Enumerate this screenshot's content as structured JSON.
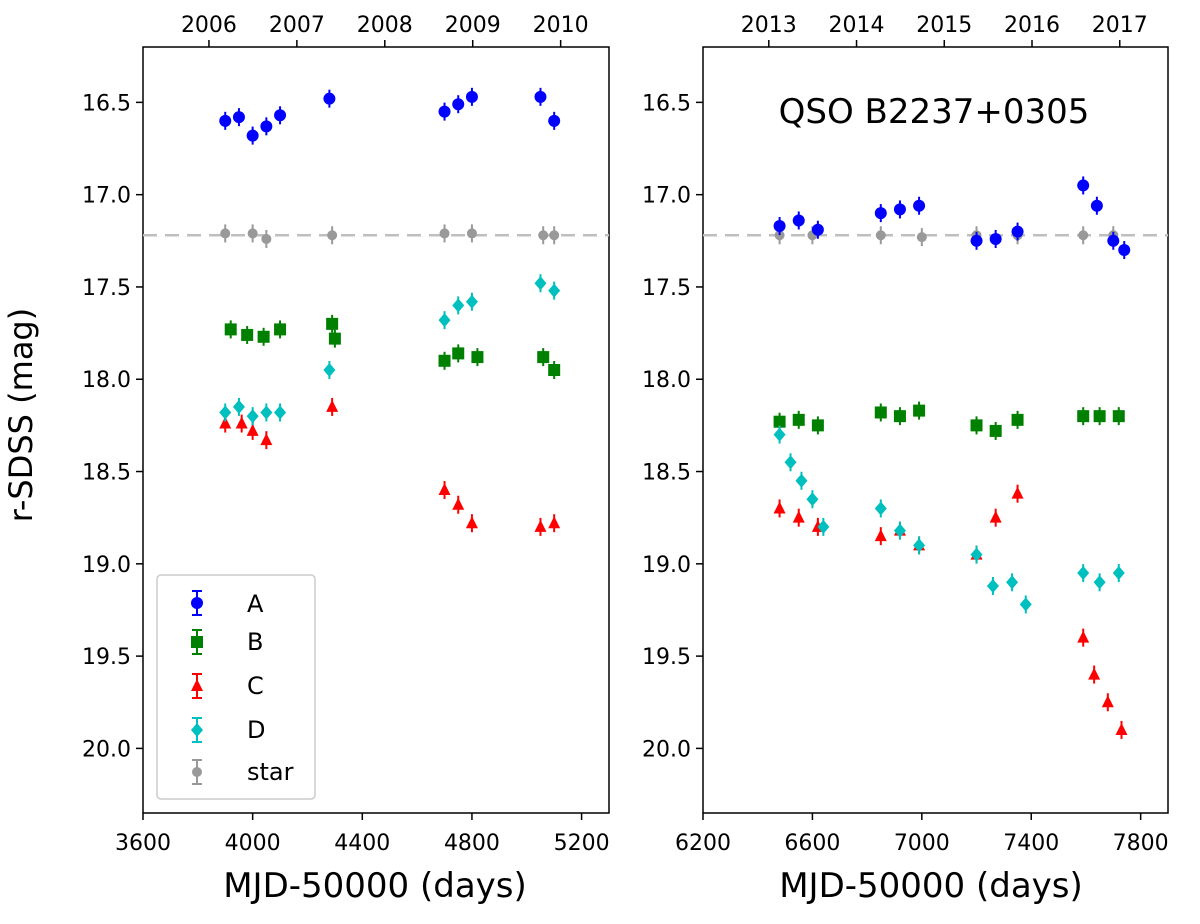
{
  "chart_data": {
    "type": "scatter",
    "title": "QSO B2237+0305",
    "ylabel": "r-SDSS (mag)",
    "y_inverted": true,
    "ylim": [
      16.2,
      20.35
    ],
    "yticks": [
      "16.5",
      "17.0",
      "17.5",
      "18.0",
      "18.5",
      "19.0",
      "19.5",
      "20.0"
    ],
    "reference_line": {
      "y": 17.22,
      "style": "dashed",
      "color": "#bfbfbf"
    },
    "legend": {
      "placement": "lower-left",
      "entries": [
        "A",
        "B",
        "C",
        "D",
        "star"
      ]
    },
    "colors": {
      "A": "#0000ff",
      "B": "#008000",
      "C": "#ff0000",
      "D": "#00bfbf",
      "star": "#999999"
    },
    "panels": [
      {
        "xlabel": "MJD-50000 (days)",
        "xlim": [
          3600,
          5300
        ],
        "xticks": [
          "3600",
          "4000",
          "4400",
          "4800",
          "5200"
        ],
        "top_axis_labels": [
          "2006",
          "2007",
          "2008",
          "2009",
          "2010"
        ],
        "series": [
          {
            "name": "A",
            "marker": "circle",
            "x": [
              3900,
              3950,
              4000,
              4050,
              4100,
              4280,
              4700,
              4750,
              4800,
              5050,
              5100
            ],
            "y": [
              16.6,
              16.58,
              16.68,
              16.63,
              16.57,
              16.48,
              16.55,
              16.51,
              16.47,
              16.47,
              16.6
            ]
          },
          {
            "name": "B",
            "marker": "square",
            "x": [
              3920,
              3980,
              4040,
              4100,
              4290,
              4300,
              4700,
              4750,
              4820,
              5060,
              5100
            ],
            "y": [
              17.73,
              17.76,
              17.77,
              17.73,
              17.7,
              17.78,
              17.9,
              17.86,
              17.88,
              17.88,
              17.95
            ]
          },
          {
            "name": "C",
            "marker": "triangle",
            "x": [
              3900,
              3960,
              4000,
              4050,
              4290,
              4700,
              4750,
              4800,
              5050,
              5100
            ],
            "y": [
              18.24,
              18.24,
              18.28,
              18.33,
              18.15,
              18.6,
              18.68,
              18.78,
              18.8,
              18.78
            ]
          },
          {
            "name": "D",
            "marker": "diamond",
            "x": [
              3900,
              3950,
              4000,
              4050,
              4100,
              4280,
              4700,
              4750,
              4800,
              5050,
              5100
            ],
            "y": [
              18.18,
              18.15,
              18.2,
              18.18,
              18.18,
              17.95,
              17.68,
              17.6,
              17.58,
              17.48,
              17.52
            ]
          },
          {
            "name": "star",
            "marker": "circle",
            "x": [
              3900,
              4000,
              4050,
              4290,
              4700,
              4800,
              5060,
              5100
            ],
            "y": [
              17.21,
              17.21,
              17.24,
              17.22,
              17.21,
              17.21,
              17.22,
              17.22
            ]
          }
        ]
      },
      {
        "xlabel": "MJD-50000 (days)",
        "xlim": [
          6200,
          7900
        ],
        "xticks": [
          "6200",
          "6600",
          "7000",
          "7400",
          "7800"
        ],
        "top_axis_labels": [
          "2013",
          "2014",
          "2015",
          "2016",
          "2017"
        ],
        "series": [
          {
            "name": "A",
            "marker": "circle",
            "x": [
              6480,
              6550,
              6620,
              6850,
              6920,
              6990,
              7200,
              7270,
              7350,
              7590,
              7640,
              7700,
              7740
            ],
            "y": [
              17.17,
              17.14,
              17.19,
              17.1,
              17.08,
              17.06,
              17.25,
              17.24,
              17.2,
              16.95,
              17.06,
              17.25,
              17.3
            ]
          },
          {
            "name": "B",
            "marker": "square",
            "x": [
              6480,
              6550,
              6620,
              6850,
              6920,
              6990,
              7200,
              7270,
              7350,
              7590,
              7650,
              7720
            ],
            "y": [
              18.23,
              18.22,
              18.25,
              18.18,
              18.2,
              18.17,
              18.25,
              18.28,
              18.22,
              18.2,
              18.2,
              18.2
            ]
          },
          {
            "name": "C",
            "marker": "triangle",
            "x": [
              6480,
              6550,
              6620,
              6850,
              6920,
              6990,
              7200,
              7270,
              7350,
              7590,
              7630,
              7680,
              7730
            ],
            "y": [
              18.7,
              18.75,
              18.8,
              18.85,
              18.82,
              18.9,
              18.95,
              18.75,
              18.62,
              19.4,
              19.6,
              19.75,
              19.9
            ]
          },
          {
            "name": "D",
            "marker": "diamond",
            "x": [
              6480,
              6520,
              6560,
              6600,
              6640,
              6850,
              6920,
              6990,
              7200,
              7260,
              7330,
              7380,
              7590,
              7650,
              7720
            ],
            "y": [
              18.3,
              18.45,
              18.55,
              18.65,
              18.8,
              18.7,
              18.82,
              18.9,
              18.95,
              19.12,
              19.1,
              19.22,
              19.05,
              19.1,
              19.05
            ]
          },
          {
            "name": "star",
            "marker": "circle",
            "x": [
              6480,
              6600,
              6850,
              7000,
              7200,
              7350,
              7590,
              7700
            ],
            "y": [
              17.22,
              17.22,
              17.22,
              17.23,
              17.22,
              17.22,
              17.22,
              17.22
            ]
          }
        ]
      }
    ]
  }
}
